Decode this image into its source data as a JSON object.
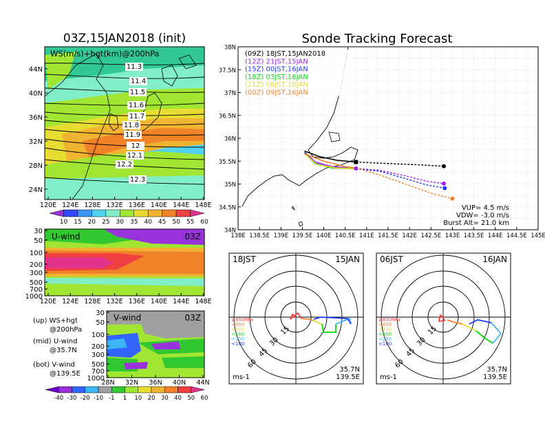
{
  "map_panel": {
    "title": "03Z,15JAN2018 (init)",
    "overlay_label": "WS(m/s)+hgt(km)@200hPa",
    "contours": [
      "11.3",
      "11.4",
      "11.5",
      "11.6",
      "11.7",
      "11.8",
      "11.9",
      "12",
      "12.1",
      "12.2",
      "12.3"
    ],
    "lat_ticks": [
      "44N",
      "40N",
      "36N",
      "32N",
      "28N",
      "24N"
    ],
    "lon_ticks": [
      "120E",
      "124E",
      "128E",
      "132E",
      "136E",
      "140E",
      "144E",
      "148E"
    ],
    "colorbar_ticks": [
      "10",
      "15",
      "20",
      "25",
      "30",
      "35",
      "40",
      "45",
      "50",
      "55",
      "60"
    ]
  },
  "uwind_panel": {
    "title": "U-wind",
    "time": "03Z",
    "p_ticks": [
      "30",
      "50",
      "100",
      "200",
      "300",
      "500",
      "700",
      "1000"
    ],
    "lon_ticks": [
      "120E",
      "124E",
      "128E",
      "132E",
      "136E",
      "140E",
      "144E",
      "148E"
    ]
  },
  "vwind_panel": {
    "title": "V-wind",
    "time": "03Z",
    "p_ticks": [
      "30",
      "50",
      "100",
      "200",
      "300",
      "500",
      "700",
      "1000"
    ],
    "lat_ticks": [
      "28N",
      "32N",
      "36N",
      "40N",
      "44N"
    ],
    "colorbar_ticks": [
      "-40",
      "-30",
      "-20",
      "-10",
      "-1",
      "1",
      "10",
      "20",
      "30",
      "40",
      "50",
      "60"
    ]
  },
  "legend_notes": [
    {
      "a": "(up) WS+hgt",
      "b": "@200hPa"
    },
    {
      "a": "(mid) U-wind",
      "b": "@35.7N"
    },
    {
      "a": "(bot) V-wind",
      "b": "@139.5E"
    }
  ],
  "chart_data": {
    "type": "line",
    "title": "Sonde Tracking Forecast",
    "xlabel": "",
    "ylabel": "",
    "x_ticks": [
      "138E",
      "138.5E",
      "139E",
      "139.5E",
      "140E",
      "140.5E",
      "141E",
      "141.5E",
      "142E",
      "142.5E",
      "143E",
      "143.5E",
      "144E",
      "144.5E",
      "145E"
    ],
    "y_ticks": [
      "38N",
      "37.5N",
      "37N",
      "36.5N",
      "36N",
      "35.5N",
      "35N",
      "34.5N",
      "34N"
    ],
    "xlim": [
      138,
      145
    ],
    "ylim": [
      34,
      38
    ],
    "grid": true,
    "legend_position": "top-left",
    "series": [
      {
        "name": "(09Z) 18JST,15JAN2018",
        "color": "#000000",
        "dash": true,
        "x": [
          139.55,
          139.9,
          140.3,
          140.75,
          141.2,
          141.7,
          142.2,
          142.8
        ],
        "y": [
          35.72,
          35.6,
          35.52,
          35.48,
          35.46,
          35.44,
          35.42,
          35.39
        ]
      },
      {
        "name": "(12Z) 21JST,15JAN",
        "color": "#a020f0",
        "dash": true,
        "x": [
          139.55,
          139.8,
          140.2,
          140.75,
          141.3,
          141.9,
          142.4,
          142.8
        ],
        "y": [
          35.7,
          35.48,
          35.38,
          35.34,
          35.3,
          35.18,
          35.06,
          35.01
        ]
      },
      {
        "name": "(15Z) 00JST,16JAN",
        "color": "#1e3cff",
        "dash": true,
        "x": [
          139.55,
          139.8,
          140.2,
          140.75,
          141.3,
          141.9,
          142.4,
          142.82
        ],
        "y": [
          35.69,
          35.45,
          35.35,
          35.33,
          35.28,
          35.12,
          34.98,
          34.91
        ]
      },
      {
        "name": "(18Z) 03JST,16JAN",
        "color": "#00dc00",
        "dash": true,
        "x": [
          139.55,
          139.8,
          140.2,
          140.75
        ],
        "y": [
          35.68,
          35.44,
          35.35,
          35.34
        ]
      },
      {
        "name": "(21Z) 06JST,16JAN",
        "color": "#e6dc32",
        "dash": true,
        "x": [
          139.55,
          139.85,
          140.3,
          140.75
        ],
        "y": [
          35.66,
          35.42,
          35.35,
          35.33
        ]
      },
      {
        "name": "(00Z) 09JST,16JAN",
        "color": "#f08228",
        "dash": true,
        "x": [
          139.55,
          140.0,
          140.5,
          140.75,
          141.3,
          141.9,
          142.5,
          143.0
        ],
        "y": [
          35.66,
          35.5,
          35.38,
          35.35,
          35.2,
          35.0,
          34.8,
          34.68
        ]
      }
    ],
    "markers": [
      {
        "x": 140.75,
        "y": 35.48,
        "color": "#000000",
        "shape": "square"
      },
      {
        "x": 142.8,
        "y": 35.39,
        "color": "#000000",
        "shape": "circle"
      },
      {
        "x": 142.8,
        "y": 35.01,
        "color": "#a020f0",
        "shape": "circle"
      },
      {
        "x": 142.82,
        "y": 34.91,
        "color": "#1e3cff",
        "shape": "circle"
      },
      {
        "x": 143.0,
        "y": 34.68,
        "color": "#f08228",
        "shape": "circle"
      },
      {
        "x": 140.75,
        "y": 35.34,
        "color": "#a020f0",
        "shape": "circle"
      }
    ],
    "annotations": [
      "VUP=  4.5 m/s",
      "VDW= -3.0 m/s",
      "Burst Alt= 21.0 km"
    ]
  },
  "hodographs": [
    {
      "left_label": "18JST",
      "right_label": "15JAN",
      "loc1": "35.7N",
      "loc2": "139.5E",
      "unit": "ms-1",
      "ring_labels": [
        "15",
        "30",
        "45",
        "60"
      ],
      "pressure_legend": [
        "≥850hPa",
        "<850",
        "<700",
        "<500",
        "<250",
        "<100"
      ]
    },
    {
      "left_label": "06JST",
      "right_label": "16JAN",
      "loc1": "35.7N",
      "loc2": "139.5E",
      "unit": "ms-1",
      "ring_labels": [
        "15",
        "30",
        "45",
        "60"
      ],
      "pressure_legend": [
        "≥850hPa",
        "<850",
        "<700",
        "<500",
        "<250",
        "<100"
      ]
    }
  ],
  "colors": {
    "ws_scale": [
      "#9a32dc",
      "#3246ff",
      "#3c96f5",
      "#50d2f0",
      "#82eec8",
      "#a0e632",
      "#e6dc32",
      "#f0b432",
      "#f08228",
      "#f04040",
      "#e1328c"
    ],
    "v_scale": [
      "#6e00c8",
      "#9a32dc",
      "#3264ff",
      "#3cb4f5",
      "#a0a0a0",
      "#32c832",
      "#a0e632",
      "#e6dc32",
      "#f0b432",
      "#f08228",
      "#f04040",
      "#e1328c"
    ]
  }
}
